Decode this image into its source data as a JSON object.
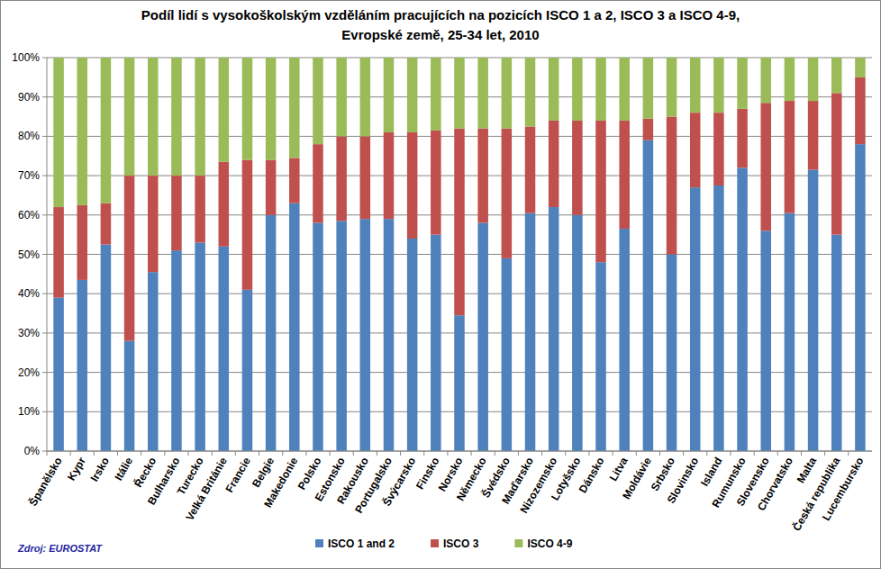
{
  "chart_data": {
    "type": "bar",
    "stacked": true,
    "title": "Podíl lidí s vysokoškolským vzděláním pracujících na pozicích ISCO 1 a 2, ISCO 3 a ISCO 4-9,\nEvropské země, 25-34 let, 2010",
    "source": "Zdroj: EUROSTAT",
    "categories": [
      "Španělsko",
      "Kypr",
      "Irsko",
      "Itálie",
      "Řecko",
      "Bulharsko",
      "Turecko",
      "Velká Británie",
      "Francie",
      "Belgie",
      "Makedonie",
      "Polsko",
      "Estonsko",
      "Rakousko",
      "Portugalsko",
      "Švýcarsko",
      "Finsko",
      "Norsko",
      "Německo",
      "Švédsko",
      "Maďarsko",
      "Nizozemsko",
      "Lotyšsko",
      "Dánsko",
      "Litva",
      "Moldávie",
      "Srbsko",
      "Slovinsko",
      "Island",
      "Rumunsko",
      "Slovensko",
      "Chorvatsko",
      "Malta",
      "Česká republika",
      "Lucembursko"
    ],
    "series": [
      {
        "name": "ISCO 1 and 2",
        "color": "#4f81bd",
        "values": [
          39,
          43.5,
          52.5,
          28,
          45.5,
          51,
          53,
          52,
          41,
          60,
          63,
          58,
          58.5,
          59,
          59,
          54,
          55,
          34.5,
          58,
          49,
          60.5,
          62,
          60,
          48,
          56.5,
          79,
          50,
          67,
          67.5,
          72,
          56,
          60.5,
          71.5,
          55,
          78
        ]
      },
      {
        "name": "ISCO 3",
        "color": "#c0504d",
        "values": [
          23,
          19,
          10.5,
          42,
          24.5,
          19,
          17,
          21.5,
          33,
          14,
          11.5,
          20,
          21.5,
          21,
          22,
          27,
          26.5,
          47.5,
          24,
          33,
          22,
          22,
          24,
          36,
          27.5,
          5.5,
          35,
          19,
          18.5,
          15,
          32.5,
          28.5,
          17.5,
          36,
          17
        ]
      },
      {
        "name": "ISCO 4-9",
        "color": "#9bbb59",
        "values": [
          38,
          37.5,
          37,
          30,
          30,
          30,
          30,
          26.5,
          26,
          26,
          25.5,
          22,
          20,
          20,
          19,
          19,
          18.5,
          18,
          18,
          18,
          17.5,
          16,
          16,
          16,
          16,
          15.5,
          15,
          14,
          14,
          13,
          11.5,
          11,
          11,
          9,
          5
        ]
      }
    ],
    "ylim": [
      0,
      100
    ],
    "yticks": [
      {
        "value": 0,
        "label": "0%"
      },
      {
        "value": 10,
        "label": "10%"
      },
      {
        "value": 20,
        "label": "20%"
      },
      {
        "value": 30,
        "label": "30%"
      },
      {
        "value": 40,
        "label": "40%"
      },
      {
        "value": 50,
        "label": "50%"
      },
      {
        "value": 60,
        "label": "60%"
      },
      {
        "value": 70,
        "label": "70%"
      },
      {
        "value": 80,
        "label": "80%"
      },
      {
        "value": 90,
        "label": "90%"
      },
      {
        "value": 100,
        "label": "100%"
      }
    ],
    "grid": true,
    "legend": "bottom"
  }
}
